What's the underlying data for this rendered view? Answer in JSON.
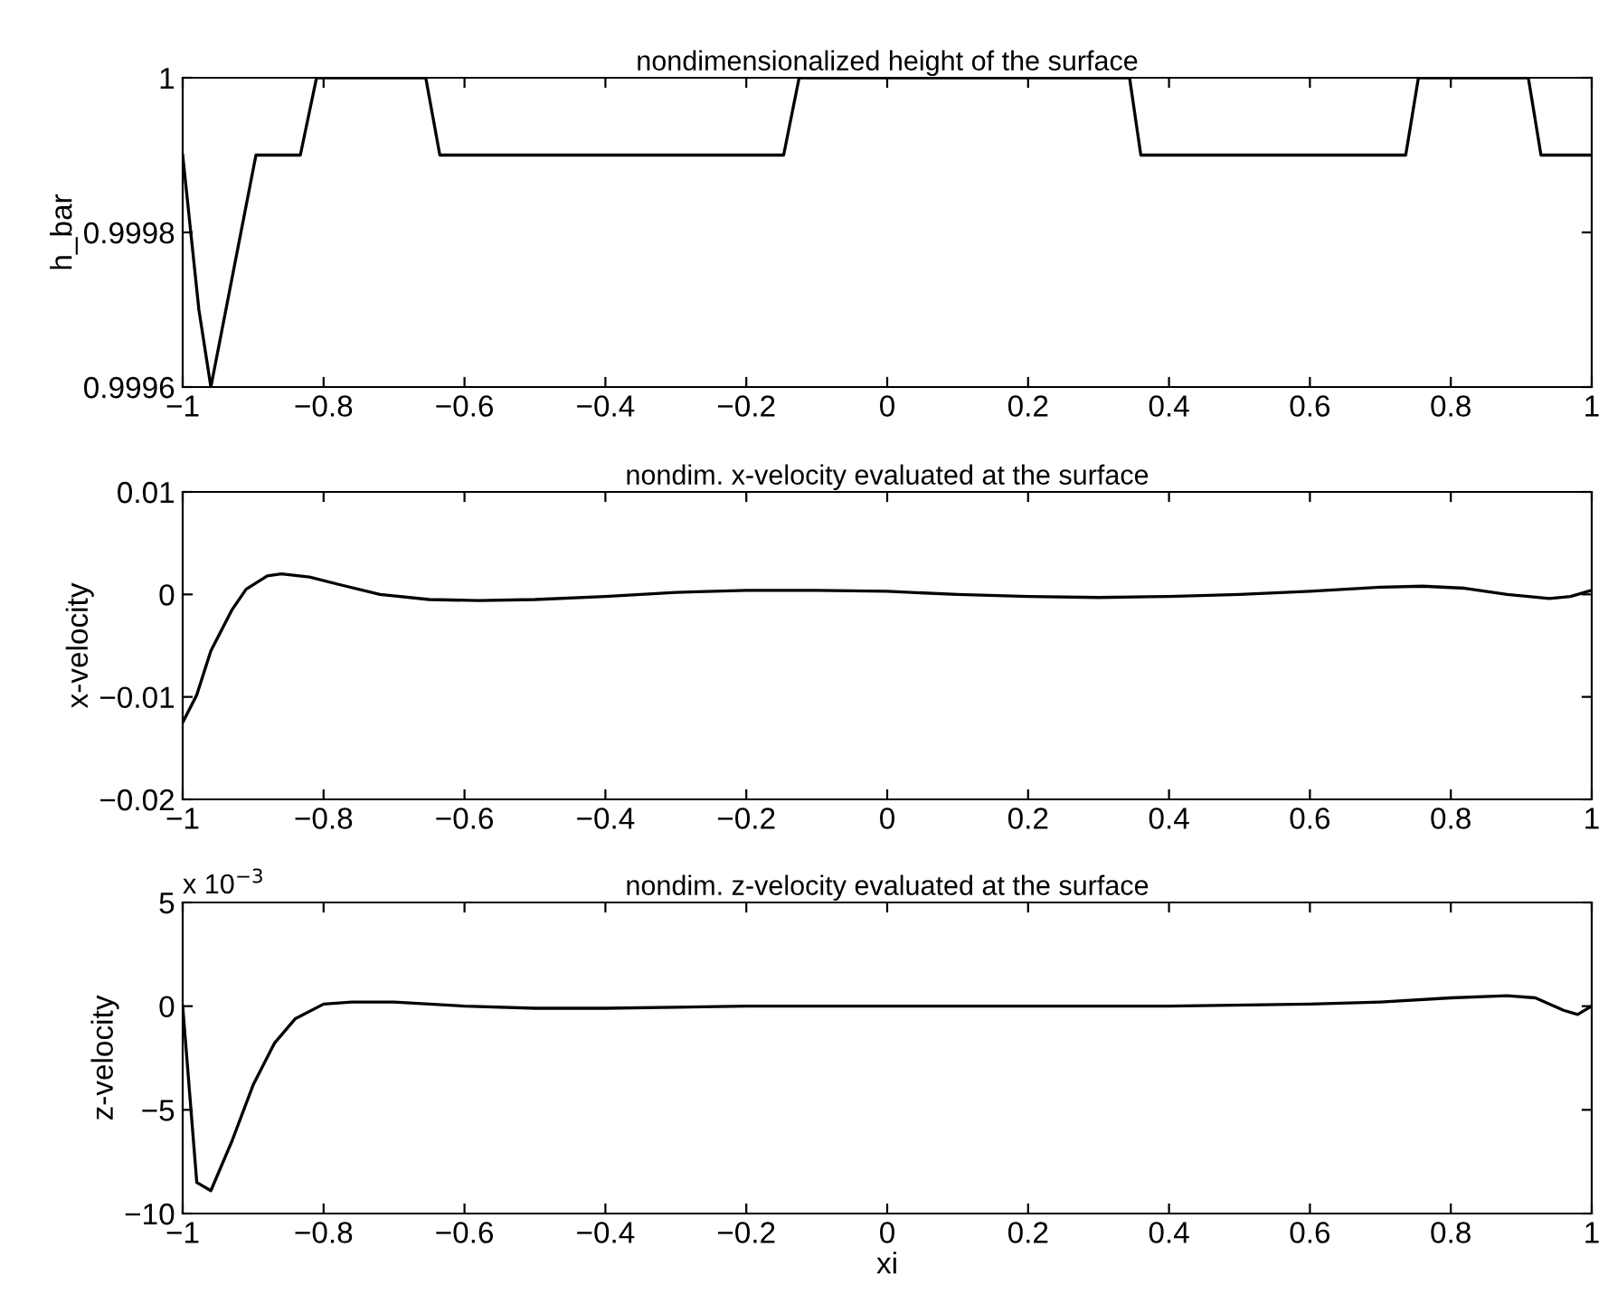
{
  "chart_data": [
    {
      "type": "line",
      "title": "nondimensionalized height of the surface",
      "ylabel": "h_bar",
      "xlim": [
        -1,
        1
      ],
      "xticks": [
        {
          "value": -1,
          "label": "−1"
        },
        {
          "value": -0.8,
          "label": "−0.8"
        },
        {
          "value": -0.6,
          "label": "−0.6"
        },
        {
          "value": -0.4,
          "label": "−0.4"
        },
        {
          "value": -0.2,
          "label": "−0.2"
        },
        0,
        0.2,
        0.4,
        0.6,
        0.8,
        1
      ],
      "ylim": [
        0.9996,
        1
      ],
      "yticks": [
        0.9996,
        0.9998,
        1
      ],
      "grid": false,
      "series": [
        {
          "color": "#000000",
          "x": [
            -1,
            -0.977,
            -0.96,
            -0.896,
            -0.833,
            -0.81,
            -0.655,
            -0.635,
            -0.147,
            -0.125,
            0.344,
            0.36,
            0.736,
            0.754,
            0.91,
            0.928,
            1
          ],
          "values": [
            0.9999,
            0.9997,
            0.9996,
            0.9999,
            0.9999,
            1,
            1,
            0.9999,
            0.9999,
            1,
            1,
            0.9999,
            0.9999,
            1,
            1,
            0.9999,
            0.9999
          ]
        }
      ]
    },
    {
      "type": "line",
      "title": "nondim. x-velocity evaluated at the surface",
      "ylabel": "x-velocity",
      "xlim": [
        -1,
        1
      ],
      "xticks": [
        {
          "value": -1,
          "label": "−1"
        },
        {
          "value": -0.8,
          "label": "−0.8"
        },
        {
          "value": -0.6,
          "label": "−0.6"
        },
        {
          "value": -0.4,
          "label": "−0.4"
        },
        {
          "value": -0.2,
          "label": "−0.2"
        },
        0,
        0.2,
        0.4,
        0.6,
        0.8,
        1
      ],
      "ylim": [
        -0.02,
        0.01
      ],
      "yticks": [
        {
          "value": -0.02,
          "label": "−0.02"
        },
        {
          "value": -0.01,
          "label": "−0.01"
        },
        0,
        0.01
      ],
      "grid": false,
      "series": [
        {
          "color": "#000000",
          "x": [
            -1,
            -0.98,
            -0.96,
            -0.93,
            -0.91,
            -0.88,
            -0.86,
            -0.82,
            -0.78,
            -0.72,
            -0.65,
            -0.58,
            -0.5,
            -0.4,
            -0.3,
            -0.2,
            -0.1,
            0,
            0.1,
            0.2,
            0.3,
            0.4,
            0.5,
            0.6,
            0.7,
            0.76,
            0.82,
            0.88,
            0.94,
            0.97,
            1
          ],
          "values": [
            -0.0125,
            -0.0098,
            -0.0055,
            -0.0015,
            0.0005,
            0.0018,
            0.002,
            0.0017,
            0.001,
            0.0,
            -0.0005,
            -0.0006,
            -0.0005,
            -0.0002,
            0.0002,
            0.0004,
            0.0004,
            0.0003,
            0.0,
            -0.0002,
            -0.0003,
            -0.0002,
            0.0,
            0.0003,
            0.0007,
            0.0008,
            0.0006,
            0.0,
            -0.0004,
            -0.0002,
            0.0004
          ]
        }
      ]
    },
    {
      "type": "line",
      "title": "nondim. z-velocity evaluated at the surface",
      "ylabel": "z-velocity",
      "xlabel": "xi",
      "annotations": [
        "x 10$^{−3}$"
      ],
      "xlim": [
        -1,
        1
      ],
      "xticks": [
        {
          "value": -1,
          "label": "−1"
        },
        {
          "value": -0.8,
          "label": "−0.8"
        },
        {
          "value": -0.6,
          "label": "−0.6"
        },
        {
          "value": -0.4,
          "label": "−0.4"
        },
        {
          "value": -0.2,
          "label": "−0.2"
        },
        0,
        0.2,
        0.4,
        0.6,
        0.8,
        1
      ],
      "ylim": [
        -10,
        5
      ],
      "yticks": [
        {
          "value": -10,
          "label": "−10"
        },
        {
          "value": -5,
          "label": "−5"
        },
        0,
        5
      ],
      "grid": false,
      "series": [
        {
          "color": "#000000",
          "x": [
            -1,
            -0.98,
            -0.96,
            -0.93,
            -0.9,
            -0.87,
            -0.84,
            -0.8,
            -0.76,
            -0.7,
            -0.6,
            -0.5,
            -0.4,
            -0.2,
            0,
            0.2,
            0.4,
            0.6,
            0.7,
            0.8,
            0.88,
            0.92,
            0.96,
            0.98,
            1
          ],
          "values": [
            0,
            -8.5,
            -8.9,
            -6.5,
            -3.8,
            -1.8,
            -0.6,
            0.1,
            0.2,
            0.2,
            0.0,
            -0.1,
            -0.1,
            0.0,
            0.0,
            0.0,
            0.0,
            0.1,
            0.2,
            0.4,
            0.5,
            0.4,
            -0.2,
            -0.4,
            0
          ]
        }
      ]
    }
  ]
}
